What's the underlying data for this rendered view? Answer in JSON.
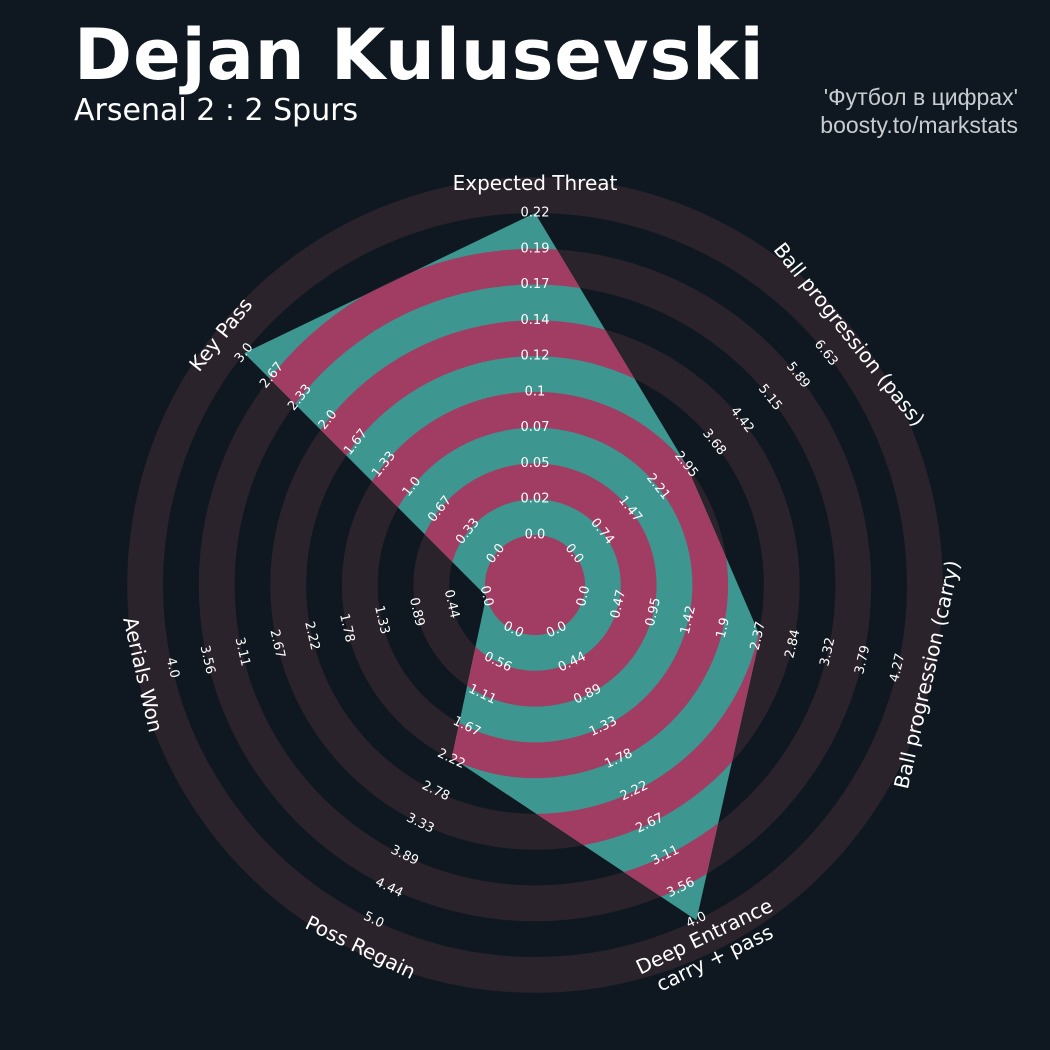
{
  "header": {
    "title": "Dejan Kulusevski",
    "subtitle": "Arsenal 2 : 2 Spurs",
    "credit_line1": "'Футбол в цифрах'",
    "credit_line2": "boosty.to/markstats"
  },
  "colors": {
    "background": "#0f1820",
    "ring": "#2a232b",
    "fill_teal": "#3e9690",
    "fill_magenta": "#a13d62",
    "text": "#ffffff"
  },
  "chart_data": {
    "type": "radar",
    "player": "Dejan Kulusevski",
    "axes": [
      {
        "label": "Expected Threat",
        "min": 0.0,
        "max": 0.22,
        "value": 0.22,
        "ticks": [
          "0.0",
          "0.02",
          "0.05",
          "0.07",
          "0.1",
          "0.12",
          "0.14",
          "0.17",
          "0.19",
          "0.22"
        ]
      },
      {
        "label": "Ball progression (pass)",
        "min": 0.0,
        "max": 6.63,
        "value": 2.95,
        "ticks": [
          "0.0",
          "0.74",
          "1.47",
          "2.21",
          "2.95",
          "3.68",
          "4.42",
          "5.15",
          "5.89",
          "6.63"
        ]
      },
      {
        "label": "Ball progression (carry)",
        "min": 0.0,
        "max": 4.27,
        "value": 2.4,
        "ticks": [
          "0.0",
          "0.47",
          "0.95",
          "1.42",
          "1.9",
          "2.37",
          "2.84",
          "3.32",
          "3.79",
          "4.27"
        ]
      },
      {
        "label": "Deep Entrance\ncarry + pass",
        "min": 0.0,
        "max": 4.0,
        "value": 4.0,
        "ticks": [
          "0.0",
          "0.44",
          "0.89",
          "1.33",
          "1.78",
          "2.22",
          "2.67",
          "3.11",
          "3.56",
          "4.0"
        ]
      },
      {
        "label": "Poss Regain",
        "min": 0.0,
        "max": 5.0,
        "value": 2.2,
        "ticks": [
          "0.0",
          "0.56",
          "1.11",
          "1.67",
          "2.22",
          "2.78",
          "3.33",
          "3.89",
          "4.44",
          "5.0"
        ]
      },
      {
        "label": "Aerials Won",
        "min": 0.0,
        "max": 4.0,
        "value": 0.0,
        "ticks": [
          "0.0",
          "0.44",
          "0.89",
          "1.33",
          "1.78",
          "2.22",
          "2.67",
          "3.11",
          "3.56",
          "4.0"
        ]
      },
      {
        "label": "Key Pass",
        "min": 0.0,
        "max": 3.0,
        "value": 3.0,
        "ticks": [
          "0.0",
          "0.33",
          "0.67",
          "1.0",
          "1.33",
          "1.67",
          "2.0",
          "2.33",
          "2.67",
          "3.0"
        ]
      }
    ]
  }
}
